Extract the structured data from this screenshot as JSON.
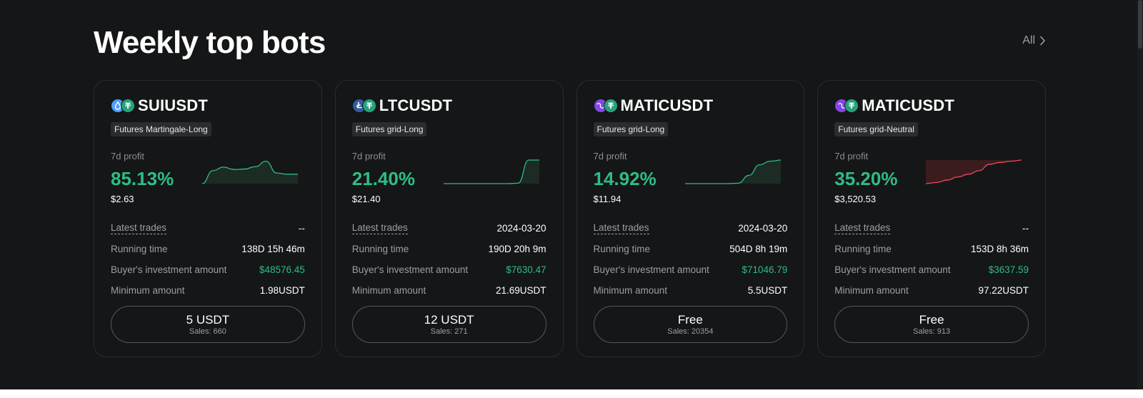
{
  "header": {
    "title": "Weekly top bots",
    "all_label": "All"
  },
  "labels": {
    "profit_label": "7d profit",
    "latest_trades": "Latest trades",
    "running_time": "Running time",
    "investment": "Buyer's investment amount",
    "minimum": "Minimum amount"
  },
  "colors": {
    "profit_green": "#2ebd85",
    "loss_red": "#f6465d",
    "tether_green": "#26a17b"
  },
  "cards": [
    {
      "pair": "SUIUSDT",
      "base_icon": "sui-icon",
      "quote_icon": "tether-icon",
      "strategy": "Futures Martingale-Long",
      "profit_pct": "85.13%",
      "profit_usd": "$2.63",
      "trend": "up",
      "spark": [
        0.0,
        0.55,
        0.7,
        0.6,
        0.62,
        0.72,
        0.95,
        0.45,
        0.4,
        0.4
      ],
      "latest_trades": "--",
      "running_time": "138D 15h 46m",
      "investment": "$48576.45",
      "minimum": "1.98USDT",
      "price": "5 USDT",
      "sales": "Sales: 660"
    },
    {
      "pair": "LTCUSDT",
      "base_icon": "litecoin-icon",
      "quote_icon": "tether-icon",
      "strategy": "Futures grid-Long",
      "profit_pct": "21.40%",
      "profit_usd": "$21.40",
      "trend": "up",
      "spark": [
        0.0,
        0.0,
        0.0,
        0.0,
        0.0,
        0.0,
        0.0,
        0.02,
        1.0,
        1.0
      ],
      "latest_trades": "2024-03-20",
      "running_time": "190D 20h 9m",
      "investment": "$7630.47",
      "minimum": "21.69USDT",
      "price": "12 USDT",
      "sales": "Sales: 271"
    },
    {
      "pair": "MATICUSDT",
      "base_icon": "polygon-icon",
      "quote_icon": "tether-icon",
      "strategy": "Futures grid-Long",
      "profit_pct": "14.92%",
      "profit_usd": "$11.94",
      "trend": "up",
      "spark": [
        0.0,
        0.0,
        0.0,
        0.0,
        0.0,
        0.02,
        0.35,
        0.8,
        0.95,
        1.0
      ],
      "latest_trades": "2024-03-20",
      "running_time": "504D 8h 19m",
      "investment": "$71046.79",
      "minimum": "5.5USDT",
      "price": "Free",
      "sales": "Sales: 20354"
    },
    {
      "pair": "MATICUSDT",
      "base_icon": "polygon-icon",
      "quote_icon": "tether-icon",
      "strategy": "Futures grid-Neutral",
      "profit_pct": "35.20%",
      "profit_usd": "$3,520.53",
      "trend": "red",
      "spark": [
        0.0,
        0.05,
        0.15,
        0.28,
        0.4,
        0.55,
        0.82,
        0.9,
        0.95,
        1.0
      ],
      "latest_trades": "--",
      "running_time": "153D 8h 36m",
      "investment": "$3637.59",
      "minimum": "97.22USDT",
      "price": "Free",
      "sales": "Sales: 913"
    }
  ]
}
